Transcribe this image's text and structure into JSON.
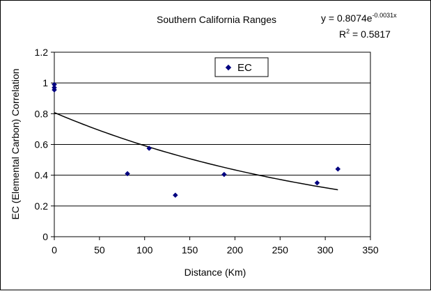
{
  "chart_data": {
    "type": "scatter",
    "title": "Southern California Ranges",
    "xlabel": "Distance (Km)",
    "ylabel": "EC (Elemental Carbon) Correlation",
    "xlim": [
      0,
      350
    ],
    "ylim": [
      0,
      1.2
    ],
    "x_ticks": [
      "0",
      "50",
      "100",
      "150",
      "200",
      "250",
      "300",
      "350"
    ],
    "y_ticks": [
      "0",
      "0.2",
      "0.4",
      "0.6",
      "0.8",
      "1",
      "1.2"
    ],
    "grid": "horizontal",
    "legend_position": "top-center",
    "series": [
      {
        "name": "EC",
        "color": "#000080",
        "marker": "diamond",
        "points": [
          {
            "x": 0,
            "y": 0.99
          },
          {
            "x": 0,
            "y": 0.97
          },
          {
            "x": 0,
            "y": 0.955
          },
          {
            "x": 81,
            "y": 0.41
          },
          {
            "x": 105,
            "y": 0.575
          },
          {
            "x": 134,
            "y": 0.27
          },
          {
            "x": 188,
            "y": 0.405
          },
          {
            "x": 291,
            "y": 0.35
          },
          {
            "x": 314,
            "y": 0.44
          }
        ]
      }
    ],
    "trendline": {
      "type": "exponential",
      "a": 0.8074,
      "b": -0.0031,
      "x_range": [
        0,
        314
      ],
      "color": "#000000",
      "equation_prefix": "y = 0.8074e",
      "equation_exponent": "-0.0031x",
      "r2_prefix": "R",
      "r2_exponent": "2",
      "r2_suffix": " = 0.5817"
    }
  }
}
